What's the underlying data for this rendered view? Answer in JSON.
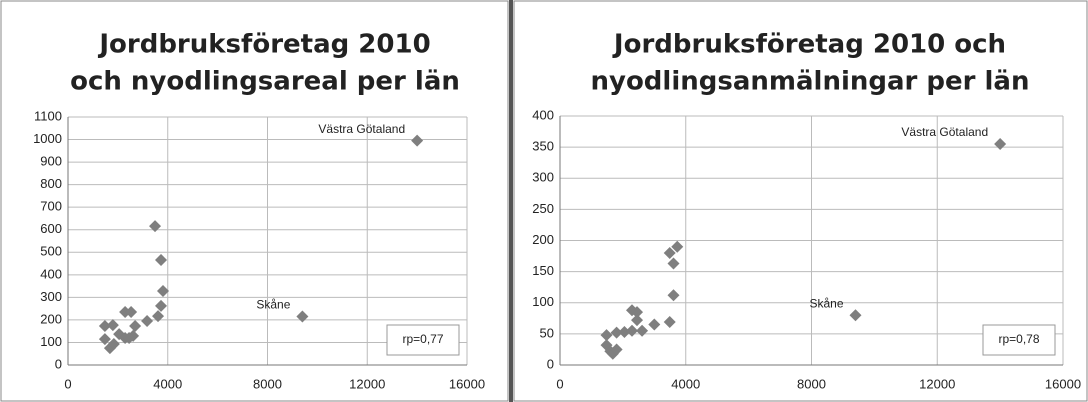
{
  "chart_data": [
    {
      "type": "scatter",
      "title": [
        "Jordbruksföretag 2010",
        "och nyodlingsareal per län"
      ],
      "x": [
        14000,
        9400,
        3490,
        3730,
        3810,
        3730,
        3610,
        3170,
        1480,
        1800,
        2290,
        2530,
        2690,
        2050,
        1480,
        1680,
        1840,
        2290,
        2610,
        2450
      ],
      "values": [
        995,
        215,
        616,
        466,
        328,
        262,
        217,
        195,
        173,
        177,
        235,
        235,
        173,
        137,
        115,
        75,
        93,
        120,
        129,
        120
      ],
      "point_labels": [
        "Västra Götaland",
        "Skåne",
        null,
        null,
        null,
        null,
        null,
        null,
        null,
        null,
        null,
        null,
        null,
        null,
        null,
        null,
        null,
        null,
        null,
        null
      ],
      "annotation": "rp=0,77",
      "color": "#7f7f7f",
      "xlim": [
        0,
        16000
      ],
      "xticks": [
        0,
        4000,
        8000,
        12000,
        16000
      ],
      "ylim": [
        0,
        1100
      ],
      "yticks": [
        0,
        100,
        200,
        300,
        400,
        500,
        600,
        700,
        800,
        900,
        1000,
        1100
      ],
      "grid": true
    },
    {
      "type": "scatter",
      "title": [
        "Jordbruksföretag 2010 och",
        "nyodlingsanmälningar per län"
      ],
      "x": [
        14000,
        9400,
        3730,
        3490,
        3610,
        3610,
        3490,
        3000,
        1480,
        1480,
        1600,
        1680,
        1800,
        1800,
        2050,
        2290,
        2450,
        2450,
        2290,
        2610
      ],
      "values": [
        355,
        80,
        190,
        180,
        163,
        112,
        69,
        65,
        48,
        32,
        22,
        18,
        25,
        52,
        53,
        88,
        85,
        72,
        55,
        55
      ],
      "point_labels": [
        "Västra Götaland",
        "Skåne",
        null,
        null,
        null,
        null,
        null,
        null,
        null,
        null,
        null,
        null,
        null,
        null,
        null,
        null,
        null,
        null,
        null,
        null
      ],
      "annotation": "rp=0,78",
      "color": "#7f7f7f",
      "xlim": [
        0,
        16000
      ],
      "xticks": [
        0,
        4000,
        8000,
        12000,
        16000
      ],
      "ylim": [
        0,
        400
      ],
      "yticks": [
        0,
        50,
        100,
        150,
        200,
        250,
        300,
        350,
        400
      ],
      "grid": true
    }
  ]
}
